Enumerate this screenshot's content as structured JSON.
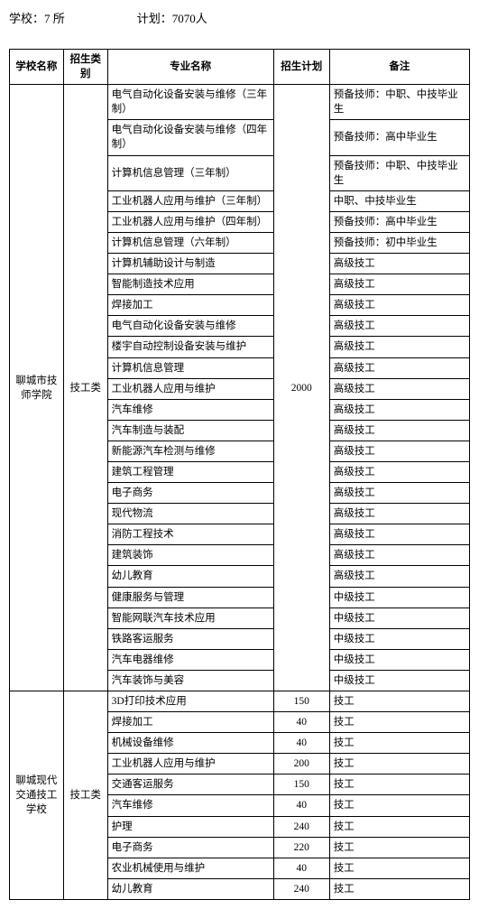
{
  "header": {
    "schools_label": "学校：7 所",
    "plan_label": "计划：7070人"
  },
  "columns": {
    "school": "学校名称",
    "category": "招生类别",
    "major": "专业名称",
    "plan": "招生计划",
    "remark": "备注"
  },
  "group1": {
    "school": "聊城市技师学院",
    "category": "技工类",
    "plan": "2000",
    "rows": [
      {
        "major": "电气自动化设备安装与维修（三年制）",
        "remark": "预备技师：中职、中技毕业生"
      },
      {
        "major": "电气自动化设备安装与维修（四年制）",
        "remark": "预备技师：高中毕业生"
      },
      {
        "major": "计算机信息管理（三年制）",
        "remark": "预备技师：中职、中技毕业生"
      },
      {
        "major": "工业机器人应用与维护（三年制）",
        "remark": "中职、中技毕业生"
      },
      {
        "major": "工业机器人应用与维护（四年制）",
        "remark": "预备技师：高中毕业生"
      },
      {
        "major": "计算机信息管理（六年制）",
        "remark": "预备技师：初中毕业生"
      },
      {
        "major": "计算机辅助设计与制造",
        "remark": "高级技工"
      },
      {
        "major": "智能制造技术应用",
        "remark": "高级技工"
      },
      {
        "major": "焊接加工",
        "remark": "高级技工"
      },
      {
        "major": "电气自动化设备安装与维修",
        "remark": "高级技工"
      },
      {
        "major": "楼宇自动控制设备安装与维护",
        "remark": "高级技工"
      },
      {
        "major": "计算机信息管理",
        "remark": "高级技工"
      },
      {
        "major": "工业机器人应用与维护",
        "remark": "高级技工"
      },
      {
        "major": "汽车维修",
        "remark": "高级技工"
      },
      {
        "major": "汽车制造与装配",
        "remark": "高级技工"
      },
      {
        "major": "新能源汽车检测与维修",
        "remark": "高级技工"
      },
      {
        "major": "建筑工程管理",
        "remark": "高级技工"
      },
      {
        "major": "电子商务",
        "remark": "高级技工"
      },
      {
        "major": "现代物流",
        "remark": "高级技工"
      },
      {
        "major": "消防工程技术",
        "remark": "高级技工"
      },
      {
        "major": "建筑装饰",
        "remark": "高级技工"
      },
      {
        "major": "幼儿教育",
        "remark": "高级技工"
      },
      {
        "major": "健康服务与管理",
        "remark": "中级技工"
      },
      {
        "major": "智能网联汽车技术应用",
        "remark": "中级技工"
      },
      {
        "major": "铁路客运服务",
        "remark": "中级技工"
      },
      {
        "major": "汽车电器维修",
        "remark": "中级技工"
      },
      {
        "major": "汽车装饰与美容",
        "remark": "中级技工"
      }
    ]
  },
  "group2": {
    "school": "聊城现代交通技工学校",
    "category": "技工类",
    "rows": [
      {
        "major": "3D打印技术应用",
        "plan": "150",
        "remark": "技工"
      },
      {
        "major": "焊接加工",
        "plan": "40",
        "remark": "技工"
      },
      {
        "major": "机械设备维修",
        "plan": "40",
        "remark": "技工"
      },
      {
        "major": "工业机器人应用与维护",
        "plan": "200",
        "remark": "技工"
      },
      {
        "major": "交通客运服务",
        "plan": "150",
        "remark": "技工"
      },
      {
        "major": "汽车维修",
        "plan": "40",
        "remark": "技工"
      },
      {
        "major": "护理",
        "plan": "240",
        "remark": "技工"
      },
      {
        "major": "电子商务",
        "plan": "220",
        "remark": "技工"
      },
      {
        "major": "农业机械使用与维护",
        "plan": "40",
        "remark": "技工"
      },
      {
        "major": "幼儿教育",
        "plan": "240",
        "remark": "技工"
      }
    ]
  }
}
